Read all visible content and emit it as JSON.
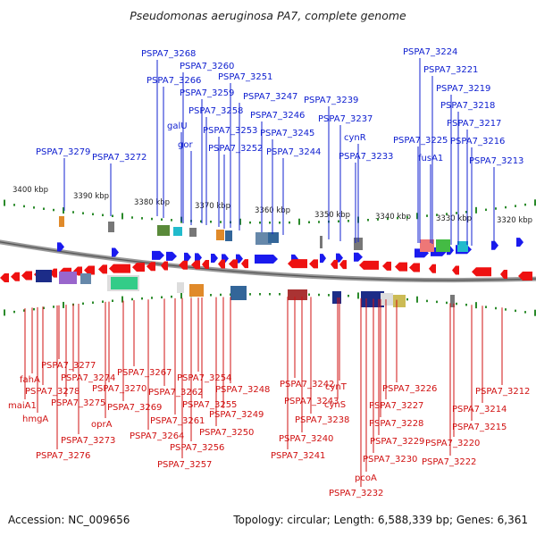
{
  "title": "Pseudomonas aeruginosa PA7, complete genome",
  "footer": {
    "accession": "Accession: NC_009656",
    "topology": "Topology: circular; Length: 6,588,339 bp; Genes: 6,361"
  },
  "colors": {
    "top_labels": "#1020d0",
    "bottom_labels": "#d01010",
    "forward_genes": "#1a1aee",
    "reverse_genes": "#ee1111",
    "backbone": "#888888",
    "ticks": "#2a8a2a"
  },
  "kbp_labels": [
    {
      "text": "3400 kbp"
    },
    {
      "text": "3390 kbp"
    },
    {
      "text": "3380 kbp"
    },
    {
      "text": "3370 kbp"
    },
    {
      "text": "3360 kbp"
    },
    {
      "text": "3350 kbp"
    },
    {
      "text": "3340 kbp"
    },
    {
      "text": "3330 kbp"
    },
    {
      "text": "3320 kbp"
    }
  ],
  "top_labels": [
    "PSPA7_3268",
    "PSPA7_3260",
    "PSPA7_3266",
    "PSPA7_3251",
    "PSPA7_3259",
    "PSPA7_3247",
    "PSPA7_3258",
    "PSPA7_3246",
    "galU",
    "PSPA7_3253",
    "PSPA7_3245",
    "gor",
    "PSPA7_3252",
    "PSPA7_3244",
    "PSPA7_3279",
    "PSPA7_3272",
    "PSPA7_3239",
    "PSPA7_3237",
    "cynR",
    "PSPA7_3233",
    "PSPA7_3224",
    "PSPA7_3221",
    "PSPA7_3219",
    "PSPA7_3218",
    "PSPA7_3217",
    "PSPA7_3225",
    "PSPA7_3216",
    "fusA1",
    "PSPA7_3213"
  ],
  "bottom_labels": [
    "PSPA7_3277",
    "fahA",
    "PSPA7_3278",
    "PSPA7_3274",
    "maiA1",
    "hmgA",
    "PSPA7_3275",
    "PSPA7_3273",
    "PSPA7_3276",
    "PSPA7_3267",
    "PSPA7_3270",
    "PSPA7_3269",
    "oprA",
    "PSPA7_3262",
    "PSPA7_3261",
    "PSPA7_3264",
    "PSPA7_3254",
    "PSPA7_3255",
    "PSPA7_3256",
    "PSPA7_3257",
    "PSPA7_3248",
    "PSPA7_3249",
    "PSPA7_3250",
    "PSPA7_3242",
    "PSPA7_3243",
    "cynT",
    "cynS",
    "PSPA7_3238",
    "PSPA7_3240",
    "PSPA7_3241",
    "PSPA7_3226",
    "PSPA7_3227",
    "PSPA7_3228",
    "PSPA7_3229",
    "PSPA7_3230",
    "pcoA",
    "PSPA7_3232",
    "PSPA7_3212",
    "PSPA7_3214",
    "PSPA7_3215",
    "PSPA7_3220",
    "PSPA7_3222"
  ]
}
